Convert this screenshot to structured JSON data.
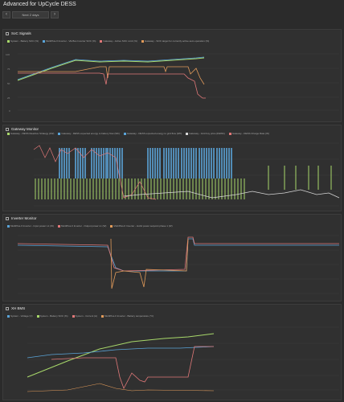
{
  "page": {
    "title": "Advanced for UpCycle DESS"
  },
  "nav": {
    "prev": "‹",
    "range": "Next 2 days",
    "next": "›"
  },
  "colors": {
    "green": "#a8d86a",
    "blue": "#5aa4d8",
    "red": "#e07878",
    "orange": "#e09a5a",
    "white": "#d8d8d8",
    "grid": "#3d3d3d"
  },
  "panels": [
    {
      "id": "soc",
      "title": "SoC Signals",
      "top": 36,
      "height": 116,
      "legend": [
        {
          "label": "System - Battery SOC (%)",
          "color": "#a8d86a"
        },
        {
          "label": "MultiPlus-II Inverter - VE.Bus Inverter SOC (%)",
          "color": "#5aa4d8"
        },
        {
          "label": "Gateway - Active SOC Limit (%)",
          "color": "#e07878"
        },
        {
          "label": "Gateway - SOC target for currently active auto operation (%)",
          "color": "#e09a5a"
        }
      ]
    },
    {
      "id": "gw",
      "title": "Gateway Monitor",
      "top": 155,
      "height": 108,
      "legend": [
        {
          "label": "Gateway - DESS Reactive Strategy (kW)",
          "color": "#a8d86a"
        },
        {
          "label": "Gateway - DESS expected energy to battery flow (Wh)",
          "color": "#5aa4d8"
        },
        {
          "label": "Gateway - DESS expected energy to grid flow (Wh)",
          "color": "#5aa4d8"
        },
        {
          "label": "Gateway - Grid buy price (€/kWh)",
          "color": "#d8d8d8"
        },
        {
          "label": "Gateway - DESS Charge Rate (W)",
          "color": "#e07878"
        }
      ]
    },
    {
      "id": "inv",
      "title": "Inverter Monitor",
      "top": 266,
      "height": 109,
      "legend": [
        {
          "label": "MultiPlus-II Inverter - Input power L1 (W)",
          "color": "#5aa4d8"
        },
        {
          "label": "MultiPlus-II Inverter - Output power L1 (W)",
          "color": "#e07878"
        },
        {
          "label": "MultiPlus-II Inverter - Hub4 power setpoint phase 1 (W)",
          "color": "#e09a5a"
        }
      ]
    },
    {
      "id": "bms",
      "title": "XH BMS",
      "top": 378,
      "height": 120,
      "legend": [
        {
          "label": "System - Voltage (V)",
          "color": "#5aa4d8"
        },
        {
          "label": "System - Battery SOC (%)",
          "color": "#a8d86a"
        },
        {
          "label": "System - Current (A)",
          "color": "#e07878"
        },
        {
          "label": "MultiPlus-II Inverter - Battery temperature (°C)",
          "color": "#e09a5a"
        }
      ]
    }
  ]
}
